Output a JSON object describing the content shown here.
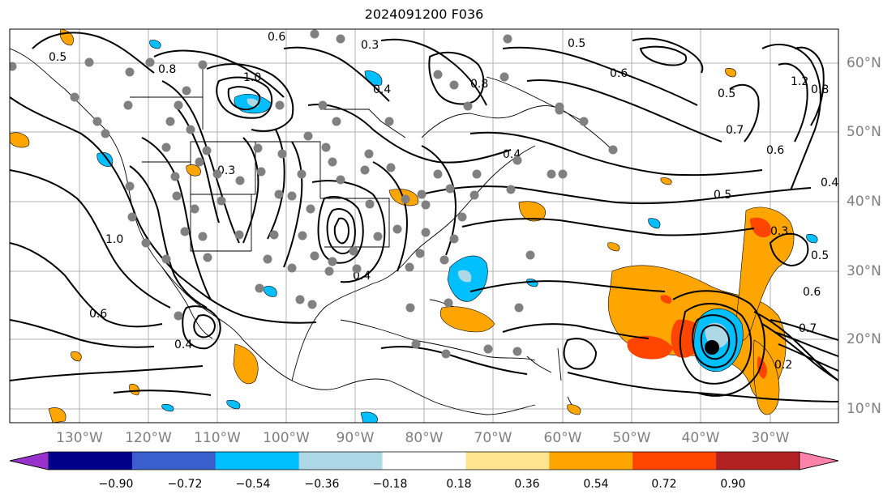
{
  "title": "2024091200 F036",
  "map": {
    "lat_labels": [
      "60°N",
      "50°N",
      "40°N",
      "30°N",
      "20°N",
      "10°N"
    ],
    "lon_labels": [
      "130°W",
      "120°W",
      "110°W",
      "100°W",
      "90°W",
      "80°W",
      "70°W",
      "60°W",
      "50°W",
      "40°W",
      "30°W"
    ],
    "contour_labels": [
      "0.6",
      "0.5",
      "0.3",
      "0.8",
      "0.4",
      "1.0",
      "0.8",
      "0.6",
      "0.5",
      "0.4",
      "1.0",
      "0.6",
      "0.3",
      "0.4",
      "0.4",
      "0.5",
      "0.7",
      "0.6",
      "0.5",
      "1.2",
      "0.8",
      "0.5",
      "0.4",
      "0.3",
      "0.6",
      "0.7",
      "0.2"
    ],
    "fill_colors": {
      "orange": "#ffa500",
      "red_orange": "#ff4500",
      "deep_sky_blue": "#00bfff",
      "light_blue": "#add8e6",
      "black": "#000000"
    }
  },
  "colorbar": {
    "colors": [
      "#9932cc",
      "#00008b",
      "#3a5fcd",
      "#00bfff",
      "#add8e6",
      "#ffffff",
      "#ffe58f",
      "#ffa500",
      "#ff4500",
      "#b22222",
      "#ff82ab"
    ],
    "tick_labels": [
      "−0.90",
      "−0.72",
      "−0.54",
      "−0.36",
      "−0.18",
      "0.18",
      "0.36",
      "0.54",
      "0.72",
      "0.90"
    ]
  }
}
